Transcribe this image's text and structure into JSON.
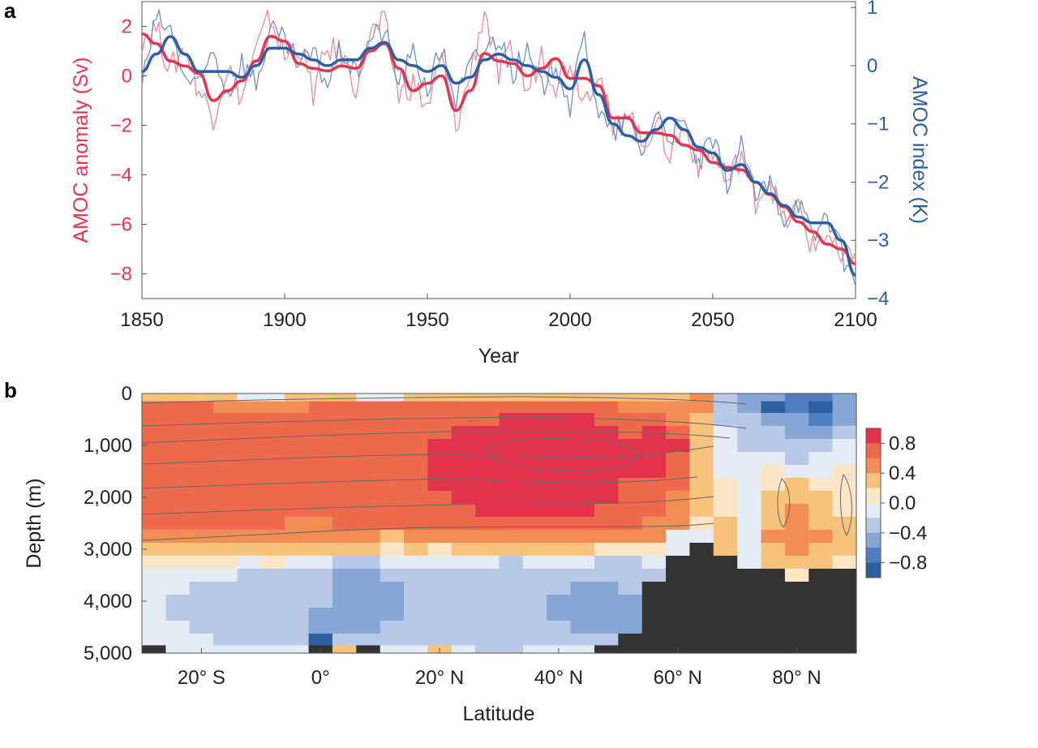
{
  "chart_data": [
    {
      "panel": "a",
      "type": "line",
      "title": "",
      "xlabel": "Year",
      "ylabel_left": "AMOC anomaly (Sv)",
      "ylabel_right": "AMOC index (K)",
      "xlim": [
        1850,
        2100
      ],
      "ylim_left": [
        -9,
        3
      ],
      "ylim_right": [
        -4,
        1.1
      ],
      "x_ticks": [
        1850,
        1900,
        1950,
        2000,
        2050,
        2100
      ],
      "x_tick_labels": [
        "1850",
        "1900",
        "1950",
        "2000",
        "2050",
        "2100"
      ],
      "y_left_ticks": [
        2,
        0,
        -2,
        -4,
        -6,
        -8
      ],
      "y_left_tick_labels": [
        "2",
        "0",
        "−2",
        "−4",
        "−6",
        "−8"
      ],
      "y_right_ticks": [
        1,
        0,
        -1,
        -2,
        -3,
        -4
      ],
      "y_right_tick_labels": [
        "1",
        "0",
        "−1",
        "−2",
        "−3",
        "−4"
      ],
      "colors": {
        "anomaly": "#e8334f",
        "anomaly_thin": "#f08a95",
        "index": "#2b5fa5",
        "index_thin": "#6f8fc8"
      },
      "x": [
        1850,
        1855,
        1860,
        1865,
        1870,
        1875,
        1880,
        1885,
        1890,
        1895,
        1900,
        1905,
        1910,
        1915,
        1920,
        1925,
        1930,
        1935,
        1940,
        1945,
        1950,
        1955,
        1960,
        1965,
        1970,
        1975,
        1980,
        1985,
        1990,
        1995,
        2000,
        2005,
        2010,
        2015,
        2020,
        2025,
        2030,
        2035,
        2040,
        2045,
        2050,
        2055,
        2060,
        2065,
        2070,
        2075,
        2080,
        2085,
        2090,
        2095,
        2100
      ],
      "series": [
        {
          "name": "AMOC anomaly",
          "axis": "left",
          "smooth": true,
          "values": [
            1.7,
            1.3,
            0.6,
            0.4,
            0.1,
            -1.0,
            -0.6,
            -0.2,
            0.6,
            1.6,
            1.4,
            0.5,
            0.3,
            0.2,
            0.4,
            0.3,
            1.0,
            1.3,
            0.3,
            -0.6,
            -0.3,
            0.0,
            -1.4,
            -0.6,
            0.9,
            0.6,
            0.5,
            0.0,
            0.3,
            0.7,
            -0.1,
            -0.1,
            -0.4,
            -1.7,
            -1.7,
            -2.3,
            -2.3,
            -2.4,
            -2.8,
            -3.0,
            -3.5,
            -3.7,
            -3.8,
            -4.3,
            -4.8,
            -5.3,
            -5.9,
            -6.3,
            -6.8,
            -7.0,
            -7.6
          ]
        },
        {
          "name": "AMOC anomaly (annual)",
          "axis": "left",
          "smooth": false,
          "values": [
            1.5,
            2.0,
            0.2,
            1.2,
            -0.6,
            -1.6,
            0.4,
            -0.9,
            1.0,
            2.4,
            0.7,
            1.3,
            -0.7,
            1.1,
            0.9,
            -0.4,
            1.7,
            2.1,
            -0.8,
            -0.3,
            -1.3,
            0.7,
            -2.1,
            0.1,
            2.7,
            -0.1,
            1.1,
            -0.7,
            1.0,
            -0.3,
            0.7,
            -0.9,
            0.3,
            -2.4,
            -1.1,
            -2.9,
            -1.8,
            -3.2,
            -2.0,
            -3.6,
            -3.0,
            -4.4,
            -3.1,
            -5.0,
            -4.2,
            -6.0,
            -5.3,
            -7.0,
            -6.3,
            -7.6,
            -7.1
          ]
        },
        {
          "name": "AMOC index",
          "axis": "right",
          "smooth": true,
          "values": [
            -0.1,
            0.2,
            0.5,
            0.2,
            -0.1,
            -0.1,
            -0.1,
            -0.2,
            0.0,
            0.3,
            0.3,
            0.2,
            0.1,
            0.0,
            0.1,
            0.1,
            0.3,
            0.4,
            0.1,
            0.0,
            -0.1,
            0.0,
            -0.3,
            -0.2,
            0.1,
            0.2,
            0.1,
            0.0,
            -0.1,
            -0.2,
            -0.4,
            0.1,
            -0.5,
            -1.0,
            -1.2,
            -1.3,
            -1.1,
            -0.9,
            -1.1,
            -1.4,
            -1.5,
            -1.8,
            -1.7,
            -2.0,
            -2.2,
            -2.4,
            -2.6,
            -2.7,
            -2.7,
            -3.0,
            -3.6
          ]
        },
        {
          "name": "AMOC index (annual)",
          "axis": "right",
          "smooth": false,
          "values": [
            -0.3,
            0.8,
            0.6,
            -0.2,
            -0.4,
            0.3,
            -0.5,
            0.1,
            -0.3,
            0.6,
            0.4,
            0.0,
            0.2,
            -0.3,
            0.3,
            -0.2,
            0.5,
            0.6,
            -0.3,
            0.2,
            -0.4,
            0.3,
            -0.6,
            0.0,
            0.3,
            0.5,
            -0.1,
            0.2,
            -0.4,
            0.1,
            -0.7,
            0.5,
            -0.8,
            -1.2,
            -0.9,
            -1.5,
            -0.8,
            -1.2,
            -1.0,
            -1.7,
            -1.3,
            -2.0,
            -1.4,
            -2.3,
            -2.0,
            -2.6,
            -2.3,
            -3.0,
            -2.5,
            -3.2,
            -3.8
          ]
        }
      ]
    },
    {
      "panel": "b",
      "type": "heatmap",
      "title": "",
      "xlabel": "Latitude",
      "ylabel": "Depth (m)",
      "xlim": [
        -30,
        90
      ],
      "ylim": [
        5000,
        0
      ],
      "x_ticks": [
        -20,
        0,
        20,
        40,
        60,
        80
      ],
      "x_tick_labels": [
        "20° S",
        "0°",
        "20° N",
        "40° N",
        "60° N",
        "80° N"
      ],
      "y_ticks": [
        0,
        1000,
        2000,
        3000,
        4000,
        5000
      ],
      "y_tick_labels": [
        "0",
        "1,000",
        "2,000",
        "3,000",
        "4,000",
        "5,000"
      ],
      "colorbar": {
        "ticks": [
          0.8,
          0.4,
          0.0,
          -0.4,
          -0.8
        ],
        "tick_labels": [
          "0.8",
          "0.4",
          "0.0",
          "−0.4",
          "−0.8"
        ],
        "range": [
          -1.0,
          1.0
        ],
        "colors": [
          "#2c5fa0",
          "#4f7dc0",
          "#86a6d6",
          "#b7c9e6",
          "#e6ecf6",
          "#fbe7c7",
          "#f6c37d",
          "#f28e53",
          "#ee6a4d",
          "#e3334c"
        ]
      },
      "land_color": "#333333",
      "lat_centers": [
        -28,
        -24,
        -20,
        -16,
        -12,
        -8,
        -4,
        0,
        4,
        8,
        12,
        16,
        20,
        24,
        28,
        32,
        36,
        40,
        44,
        48,
        52,
        56,
        60,
        64,
        68,
        72,
        76,
        80,
        84,
        88
      ],
      "depth_centers": [
        50,
        250,
        500,
        750,
        1000,
        1250,
        1500,
        1750,
        2000,
        2250,
        2500,
        2750,
        3000,
        3250,
        3500,
        3750,
        4000,
        4250,
        4500,
        4750,
        4950
      ],
      "values": [
        [
          0.3,
          0.3,
          0.2,
          0.2,
          -0.1,
          -0.1,
          0.2,
          0.3,
          0.2,
          -0.1,
          -0.1,
          0.2,
          0.3,
          0.3,
          0.3,
          0.2,
          0.2,
          0.2,
          0.2,
          0.3,
          0.3,
          0.3,
          0.2,
          0.4,
          -0.3,
          -0.5,
          -0.6,
          -0.7,
          -0.7,
          -0.6
        ],
        [
          0.6,
          0.6,
          0.6,
          0.5,
          0.5,
          0.5,
          0.5,
          0.6,
          0.6,
          0.6,
          0.6,
          0.6,
          0.6,
          0.6,
          0.6,
          0.6,
          0.6,
          0.6,
          0.6,
          0.6,
          0.5,
          0.5,
          0.4,
          0.4,
          -0.3,
          -0.6,
          -0.8,
          -0.7,
          -0.8,
          -0.6
        ],
        [
          0.6,
          0.6,
          0.6,
          0.6,
          0.6,
          0.6,
          0.6,
          0.6,
          0.6,
          0.6,
          0.6,
          0.6,
          0.7,
          0.7,
          0.7,
          0.9,
          0.9,
          0.9,
          0.8,
          0.7,
          0.6,
          0.6,
          0.5,
          0.3,
          -0.3,
          -0.4,
          -0.6,
          -0.6,
          -0.7,
          -0.5
        ],
        [
          0.6,
          0.6,
          0.6,
          0.6,
          0.6,
          0.6,
          0.6,
          0.6,
          0.6,
          0.6,
          0.6,
          0.7,
          0.7,
          0.9,
          0.9,
          0.9,
          0.9,
          0.9,
          0.9,
          0.9,
          0.7,
          0.8,
          0.7,
          0.3,
          -0.2,
          -0.3,
          -0.4,
          -0.5,
          -0.6,
          -0.4
        ],
        [
          0.6,
          0.6,
          0.6,
          0.6,
          0.6,
          0.6,
          0.6,
          0.6,
          0.6,
          0.6,
          0.6,
          0.7,
          0.9,
          0.9,
          0.9,
          0.9,
          0.9,
          0.9,
          0.9,
          0.9,
          0.8,
          0.9,
          0.8,
          0.3,
          -0.2,
          -0.3,
          -0.3,
          -0.4,
          -0.3,
          -0.2
        ],
        [
          0.6,
          0.6,
          0.6,
          0.6,
          0.6,
          0.6,
          0.6,
          0.6,
          0.6,
          0.6,
          0.6,
          0.7,
          0.9,
          0.9,
          0.9,
          0.9,
          0.9,
          0.9,
          0.9,
          0.9,
          0.8,
          0.9,
          0.7,
          0.3,
          -0.2,
          -0.2,
          -0.2,
          -0.3,
          -0.2,
          -0.1
        ],
        [
          0.6,
          0.6,
          0.6,
          0.6,
          0.6,
          0.6,
          0.6,
          0.6,
          0.6,
          0.6,
          0.6,
          0.7,
          0.9,
          0.9,
          0.9,
          0.9,
          0.9,
          0.9,
          0.9,
          0.9,
          0.8,
          0.8,
          0.6,
          0.3,
          -0.1,
          -0.1,
          0.0,
          -0.1,
          -0.1,
          0.0
        ],
        [
          0.6,
          0.6,
          0.6,
          0.6,
          0.6,
          0.6,
          0.6,
          0.6,
          0.6,
          0.6,
          0.6,
          0.6,
          0.8,
          0.9,
          0.9,
          0.9,
          0.9,
          0.9,
          0.9,
          0.8,
          0.7,
          0.7,
          0.6,
          0.2,
          0.0,
          -0.1,
          0.1,
          0.2,
          0.1,
          0.1
        ],
        [
          0.6,
          0.6,
          0.6,
          0.6,
          0.6,
          0.6,
          0.6,
          0.6,
          0.6,
          0.6,
          0.6,
          0.6,
          0.7,
          0.8,
          0.9,
          0.9,
          0.9,
          0.9,
          0.9,
          0.8,
          0.7,
          0.7,
          0.5,
          0.2,
          0.1,
          -0.2,
          0.2,
          0.3,
          0.2,
          0.1
        ],
        [
          0.6,
          0.6,
          0.6,
          0.6,
          0.6,
          0.6,
          0.6,
          0.6,
          0.6,
          0.6,
          0.6,
          0.6,
          0.6,
          0.7,
          0.8,
          0.9,
          0.9,
          0.9,
          0.8,
          0.7,
          0.6,
          0.6,
          0.5,
          0.2,
          0.1,
          -0.1,
          0.3,
          0.4,
          0.2,
          0.1
        ],
        [
          0.6,
          0.6,
          0.6,
          0.6,
          0.6,
          0.6,
          0.5,
          0.5,
          0.6,
          0.6,
          0.6,
          0.6,
          0.6,
          0.6,
          0.6,
          0.7,
          0.7,
          0.7,
          0.6,
          0.6,
          0.6,
          0.5,
          0.4,
          0.0,
          0.3,
          -0.1,
          0.3,
          0.5,
          0.3,
          0.2
        ],
        [
          0.4,
          0.4,
          0.4,
          0.4,
          0.5,
          0.5,
          0.4,
          0.4,
          0.4,
          0.4,
          0.3,
          0.4,
          0.5,
          0.5,
          0.5,
          0.5,
          0.5,
          0.5,
          0.5,
          0.5,
          0.4,
          0.4,
          -0.1,
          -0.1,
          0.3,
          -0.1,
          0.4,
          0.5,
          0.4,
          0.3
        ],
        [
          0.2,
          0.2,
          0.2,
          0.2,
          0.2,
          0.2,
          0.3,
          0.3,
          0.2,
          0.2,
          0.1,
          0.2,
          0.1,
          0.2,
          0.2,
          0.2,
          0.2,
          0.2,
          0.2,
          0.1,
          0.1,
          0.0,
          -0.2,
          99,
          0.3,
          -0.1,
          0.3,
          0.4,
          0.3,
          0.3
        ],
        [
          0.1,
          0.1,
          0.0,
          0.0,
          -0.1,
          0.0,
          -0.1,
          -0.1,
          -0.3,
          -0.3,
          -0.2,
          -0.2,
          -0.1,
          -0.2,
          -0.2,
          -0.3,
          -0.2,
          -0.1,
          -0.2,
          -0.3,
          -0.3,
          -0.2,
          99,
          99,
          99,
          -0.1,
          0.2,
          0.2,
          0.2,
          0.1
        ],
        [
          -0.1,
          -0.2,
          -0.2,
          -0.2,
          -0.3,
          -0.3,
          -0.3,
          -0.4,
          -0.5,
          -0.5,
          -0.4,
          -0.3,
          -0.3,
          -0.3,
          -0.3,
          -0.4,
          -0.3,
          -0.3,
          -0.4,
          -0.4,
          -0.4,
          -0.3,
          99,
          99,
          99,
          99,
          99,
          0.1,
          99,
          99
        ],
        [
          -0.2,
          -0.2,
          -0.3,
          -0.3,
          -0.3,
          -0.3,
          -0.4,
          -0.4,
          -0.6,
          -0.6,
          -0.5,
          -0.4,
          -0.4,
          -0.4,
          -0.4,
          -0.4,
          -0.4,
          -0.4,
          -0.5,
          -0.6,
          -0.4,
          99,
          99,
          99,
          99,
          99,
          99,
          99,
          99,
          99
        ],
        [
          -0.2,
          -0.3,
          -0.3,
          -0.3,
          -0.3,
          -0.4,
          -0.4,
          -0.4,
          -0.5,
          -0.6,
          -0.6,
          -0.4,
          -0.4,
          -0.4,
          -0.4,
          -0.4,
          -0.4,
          -0.5,
          -0.5,
          -0.6,
          -0.5,
          99,
          99,
          99,
          99,
          99,
          99,
          99,
          99,
          99
        ],
        [
          -0.2,
          -0.3,
          -0.3,
          -0.3,
          -0.3,
          -0.4,
          -0.4,
          -0.5,
          -0.5,
          -0.6,
          -0.5,
          -0.4,
          -0.4,
          -0.4,
          -0.4,
          -0.4,
          -0.4,
          -0.5,
          -0.5,
          -0.6,
          -0.5,
          99,
          99,
          99,
          99,
          99,
          99,
          99,
          99,
          99
        ],
        [
          -0.2,
          -0.2,
          -0.3,
          -0.3,
          -0.3,
          -0.3,
          -0.4,
          -0.5,
          -0.6,
          -0.5,
          -0.4,
          -0.4,
          -0.4,
          -0.4,
          -0.4,
          -0.4,
          -0.4,
          -0.4,
          -0.5,
          -0.5,
          -0.5,
          99,
          99,
          99,
          99,
          99,
          99,
          99,
          99,
          99
        ],
        [
          -0.1,
          -0.2,
          -0.2,
          -0.3,
          -0.3,
          -0.3,
          -0.3,
          -0.8,
          -0.4,
          -0.4,
          -0.3,
          -0.3,
          -0.3,
          -0.4,
          -0.4,
          -0.4,
          -0.3,
          -0.4,
          -0.4,
          -0.4,
          99,
          99,
          99,
          99,
          99,
          99,
          99,
          99,
          99,
          99
        ],
        [
          99,
          -0.1,
          -0.1,
          -0.2,
          -0.2,
          -0.1,
          -0.2,
          99,
          0.2,
          99,
          -0.2,
          -0.2,
          0.3,
          -0.2,
          -0.3,
          -0.3,
          -0.2,
          -0.2,
          -0.2,
          99,
          99,
          99,
          99,
          99,
          99,
          99,
          99,
          99,
          99,
          99
        ]
      ]
    }
  ]
}
